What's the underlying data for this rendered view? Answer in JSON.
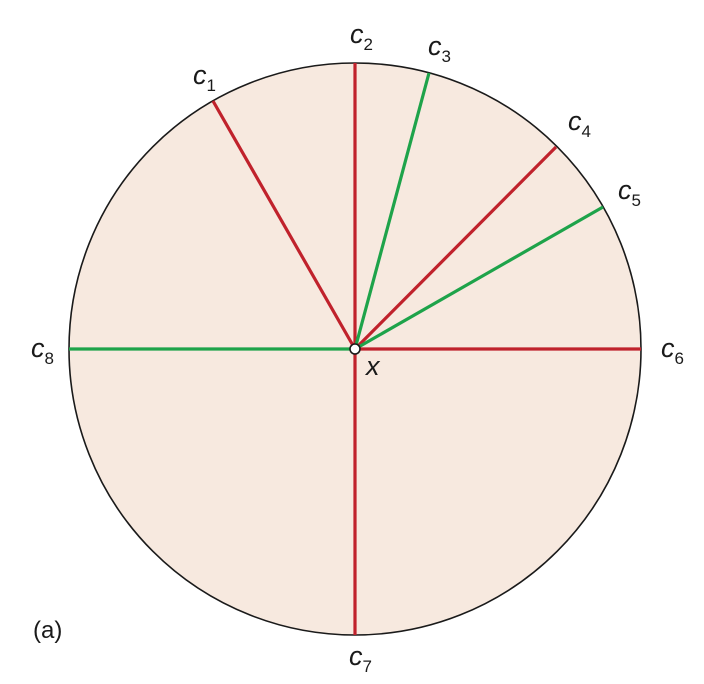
{
  "diagram": {
    "circle": {
      "fill": "#f7e9df",
      "stroke": "#1a1a1a"
    },
    "center_label": "x",
    "panel_label": "(a)",
    "colors": {
      "red": "#c0222c",
      "green": "#1ea34a"
    },
    "chords": [
      {
        "id": "c1",
        "letter": "c",
        "sub": "1",
        "color": "red"
      },
      {
        "id": "c2",
        "letter": "c",
        "sub": "2",
        "color": "red"
      },
      {
        "id": "c3",
        "letter": "c",
        "sub": "3",
        "color": "green"
      },
      {
        "id": "c4",
        "letter": "c",
        "sub": "4",
        "color": "red"
      },
      {
        "id": "c5",
        "letter": "c",
        "sub": "5",
        "color": "green"
      },
      {
        "id": "c6",
        "letter": "c",
        "sub": "6",
        "color": "red"
      },
      {
        "id": "c7",
        "letter": "c",
        "sub": "7",
        "color": "red"
      },
      {
        "id": "c8",
        "letter": "c",
        "sub": "8",
        "color": "green"
      }
    ]
  }
}
